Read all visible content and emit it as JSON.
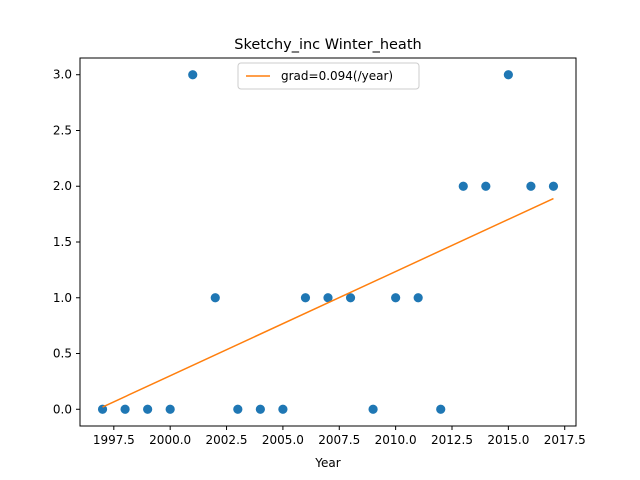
{
  "chart_data": {
    "type": "scatter",
    "title": "Sketchy_inc Winter_heath",
    "xlabel": "Year",
    "ylabel": "",
    "xlim": [
      1996.0,
      2018.0
    ],
    "ylim": [
      -0.15,
      3.15
    ],
    "xticks": [
      1997.5,
      2000.0,
      2002.5,
      2005.0,
      2007.5,
      2010.0,
      2012.5,
      2015.0,
      2017.5
    ],
    "xtick_labels": [
      "1997.5",
      "2000.0",
      "2002.5",
      "2005.0",
      "2007.5",
      "2010.0",
      "2012.5",
      "2015.0",
      "2017.5"
    ],
    "yticks": [
      0.0,
      0.5,
      1.0,
      1.5,
      2.0,
      2.5,
      3.0
    ],
    "ytick_labels": [
      "0.0",
      "0.5",
      "1.0",
      "1.5",
      "2.0",
      "2.5",
      "3.0"
    ],
    "grid": false,
    "legend_position": "top-center",
    "series": [
      {
        "kind": "scatter",
        "color": "#1f77b4",
        "x": [
          1997,
          1998,
          1999,
          2000,
          2001,
          2002,
          2003,
          2004,
          2005,
          2006,
          2007,
          2008,
          2009,
          2010,
          2011,
          2012,
          2013,
          2014,
          2015,
          2016,
          2017
        ],
        "y": [
          0,
          0,
          0,
          0,
          3,
          1,
          0,
          0,
          0,
          1,
          1,
          1,
          0,
          1,
          1,
          0,
          2,
          2,
          3,
          2,
          2
        ]
      },
      {
        "kind": "line",
        "name": "grad=0.094(/year)",
        "color": "#ff7f0e",
        "x": [
          1997,
          2017
        ],
        "y": [
          0.02,
          1.89
        ]
      }
    ]
  }
}
